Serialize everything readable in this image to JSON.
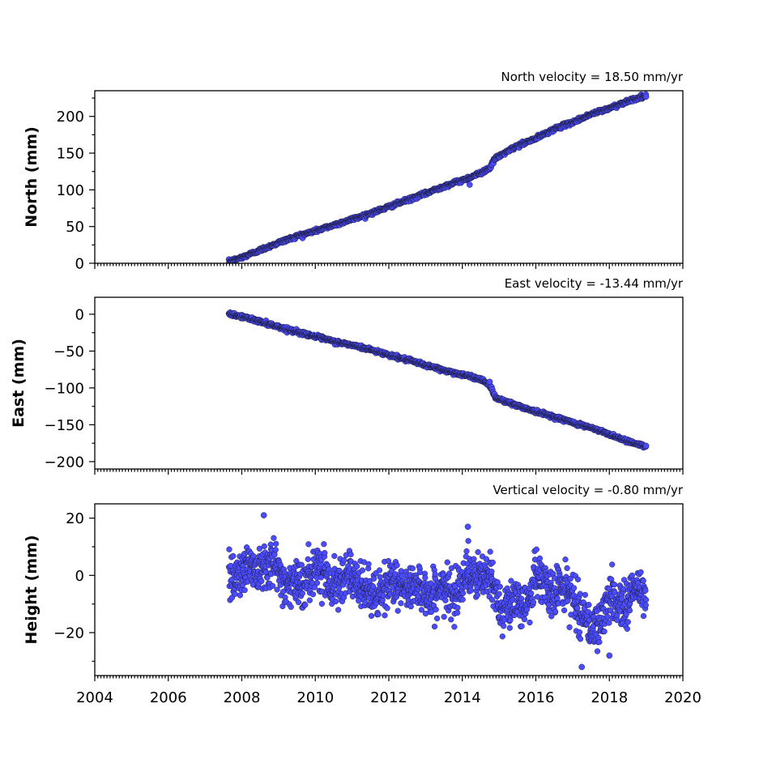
{
  "chart_data": [
    {
      "type": "scatter",
      "title": "North velocity = 18.50 mm/yr",
      "xlabel": "",
      "ylabel": "North (mm)",
      "xlim": [
        2004,
        2020
      ],
      "ylim": [
        0,
        235
      ],
      "yticks": [
        0,
        50,
        100,
        150,
        200
      ],
      "ytick_labels": [
        "0",
        "50",
        "100",
        "150",
        "200"
      ],
      "xticks": [
        2004,
        2006,
        2008,
        2010,
        2012,
        2014,
        2016,
        2018,
        2020
      ],
      "xtick_labels": [],
      "grid": false,
      "color": "#4b4bff",
      "series": [
        {
          "x": [
            2007.65,
            2008.0,
            2008.5,
            2009.0,
            2009.5,
            2010.0,
            2010.5,
            2011.0,
            2011.5,
            2012.0,
            2012.5,
            2013.0,
            2013.5,
            2014.0,
            2014.5,
            2014.75,
            2014.9,
            2015.5,
            2016.0,
            2016.5,
            2017.0,
            2017.5,
            2018.0,
            2018.5,
            2019.0
          ],
          "y": [
            2,
            8,
            18,
            28,
            37,
            44,
            52,
            60,
            68,
            77,
            86,
            95,
            105,
            113,
            123,
            130,
            143,
            160,
            170,
            183,
            192,
            203,
            211,
            221,
            228
          ]
        },
        {
          "x": [
            2014.2
          ],
          "y": [
            107
          ]
        }
      ]
    },
    {
      "type": "scatter",
      "title": "East velocity = -13.44 mm/yr",
      "xlabel": "",
      "ylabel": "East (mm)",
      "xlim": [
        2004,
        2020
      ],
      "ylim": [
        -210,
        23
      ],
      "yticks": [
        -200,
        -150,
        -100,
        -50,
        0
      ],
      "ytick_labels": [
        "−200",
        "−150",
        "−100",
        "−50",
        "0"
      ],
      "xticks": [
        2004,
        2006,
        2008,
        2010,
        2012,
        2014,
        2016,
        2018,
        2020
      ],
      "xtick_labels": [],
      "grid": false,
      "color": "#4b4bff",
      "series": [
        {
          "x": [
            2007.65,
            2008.0,
            2008.5,
            2009.0,
            2009.5,
            2010.0,
            2010.5,
            2011.0,
            2011.5,
            2012.0,
            2012.5,
            2013.0,
            2013.5,
            2014.0,
            2014.5,
            2014.75,
            2014.9,
            2015.5,
            2016.0,
            2016.5,
            2017.0,
            2017.5,
            2018.0,
            2018.5,
            2019.0
          ],
          "y": [
            0,
            -3,
            -10,
            -17,
            -24,
            -30,
            -37,
            -42,
            -48,
            -55,
            -62,
            -69,
            -76,
            -82,
            -88,
            -96,
            -113,
            -124,
            -132,
            -139,
            -147,
            -154,
            -163,
            -172,
            -180
          ]
        }
      ]
    },
    {
      "type": "scatter",
      "title": "Vertical velocity = -0.80 mm/yr",
      "xlabel": "",
      "ylabel": "Height (mm)",
      "xlim": [
        2004,
        2020
      ],
      "ylim": [
        -35,
        25
      ],
      "yticks": [
        -20,
        0,
        20
      ],
      "ytick_labels": [
        "−20",
        "0",
        "20"
      ],
      "xticks": [
        2004,
        2006,
        2008,
        2010,
        2012,
        2014,
        2016,
        2018,
        2020
      ],
      "xtick_labels": [
        "2004",
        "2006",
        "2008",
        "2010",
        "2012",
        "2014",
        "2016",
        "2018",
        "2020"
      ],
      "grid": false,
      "color": "#4b4bff",
      "series": [
        {
          "x": [
            2007.65,
            2008.0,
            2008.5,
            2009.0,
            2009.5,
            2010.0,
            2010.5,
            2011.0,
            2011.5,
            2012.0,
            2012.5,
            2013.0,
            2013.5,
            2014.0,
            2014.5,
            2015.0,
            2015.5,
            2016.0,
            2016.5,
            2017.0,
            2017.5,
            2018.0,
            2018.5,
            2019.0
          ],
          "y": [
            3,
            0,
            5,
            2,
            -5,
            3,
            -2,
            0,
            -8,
            -3,
            -4,
            -5,
            -7,
            -2,
            1,
            -8,
            -12,
            -2,
            -5,
            -6,
            -20,
            -10,
            -8,
            -5
          ]
        },
        {
          "x": [
            2008.6,
            2014.15,
            2017.25,
            2018.0
          ],
          "y": [
            21,
            17,
            -32,
            -28
          ]
        }
      ]
    }
  ]
}
